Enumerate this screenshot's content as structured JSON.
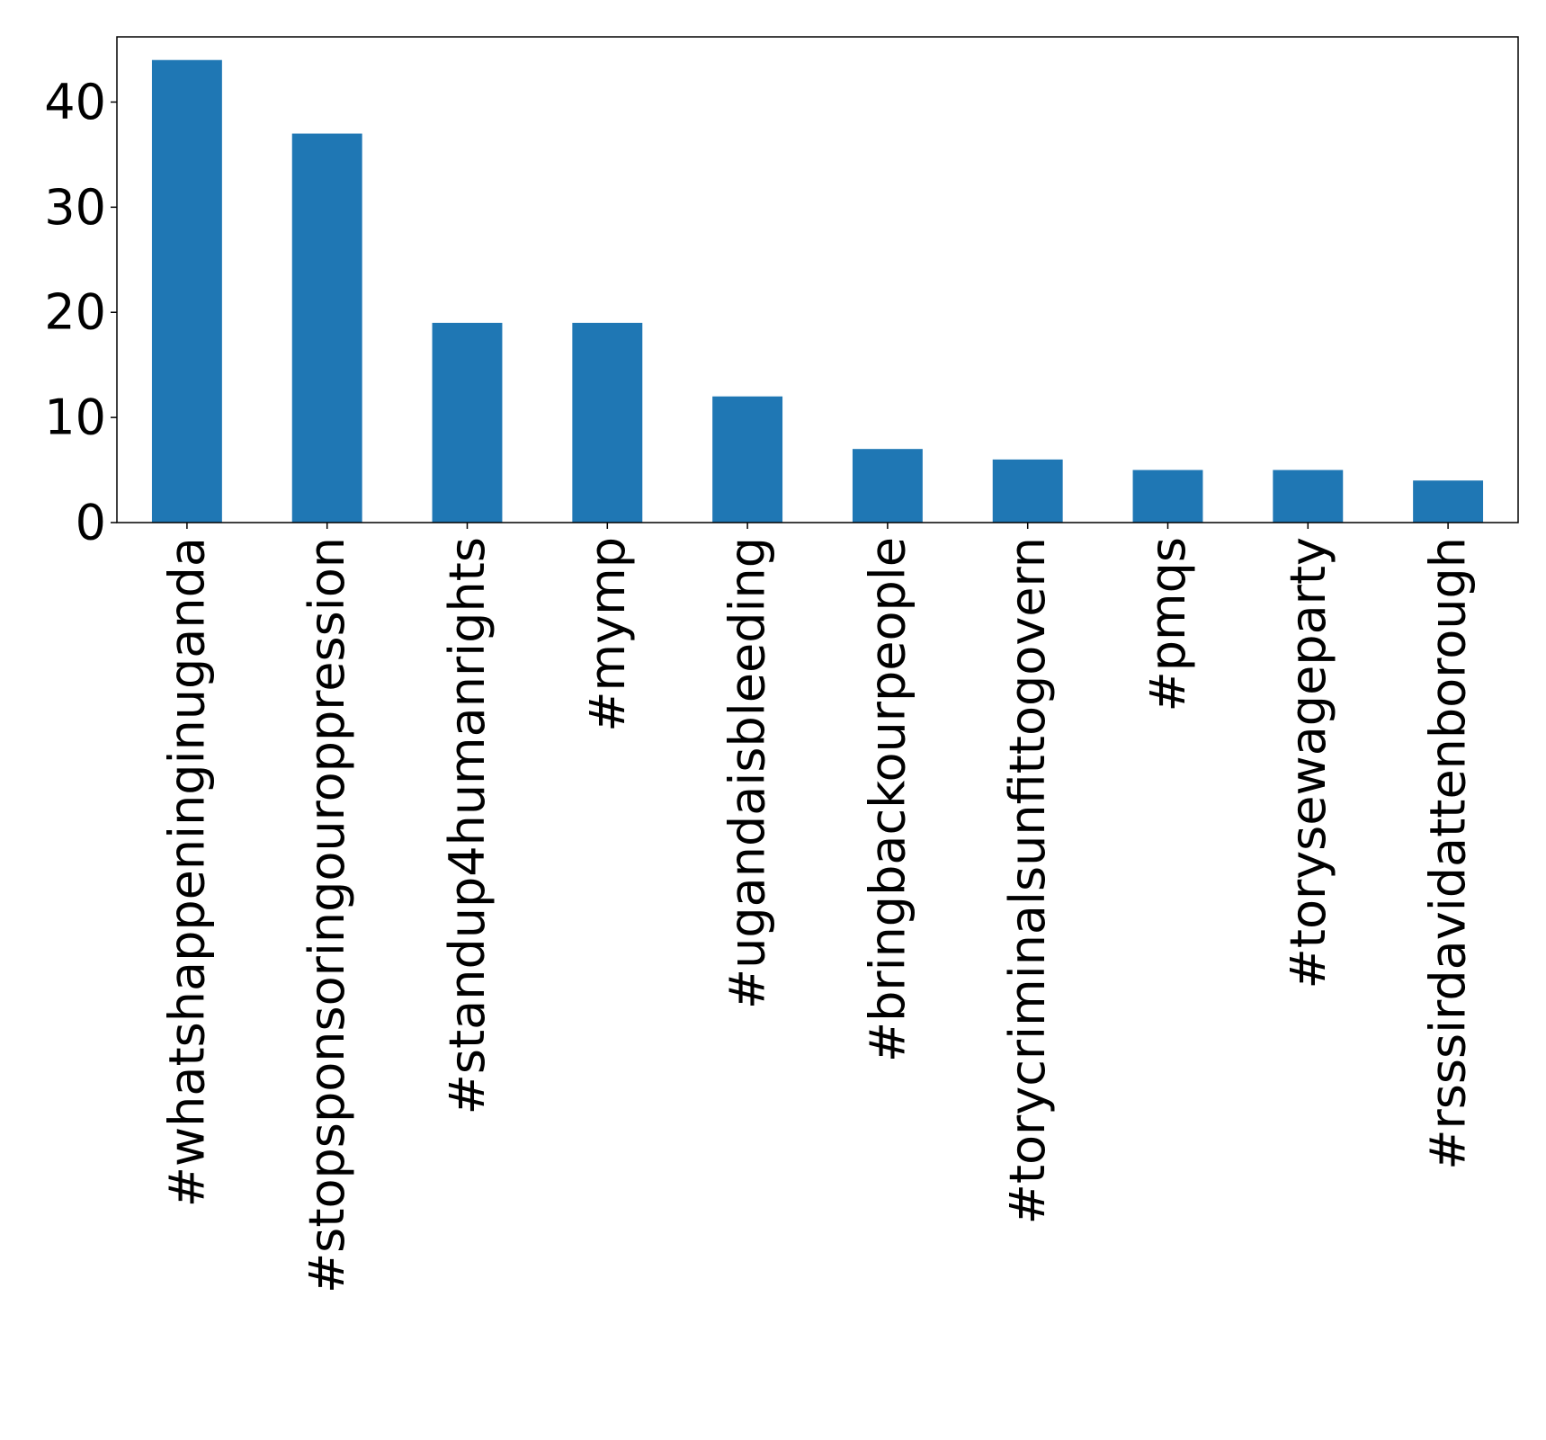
{
  "chart_data": {
    "type": "bar",
    "title": "",
    "xlabel": "",
    "ylabel": "",
    "categories": [
      "#whatshappeninginuganda",
      "#stopsponsoringouroppression",
      "#standup4humanrights",
      "#mymp",
      "#ugandaisbleeding",
      "#bringbackourpeople",
      "#torycriminalsunfittogovern",
      "#pmqs",
      "#torysewageparty",
      "#rsssirdavidattenborough"
    ],
    "values": [
      44,
      37,
      19,
      19,
      12,
      7,
      6,
      5,
      5,
      4
    ],
    "ylim": [
      0,
      46.2
    ],
    "yticks": [
      0,
      10,
      20,
      30,
      40
    ],
    "grid": false,
    "legend": "none",
    "bar_color": "#1f77b4"
  }
}
